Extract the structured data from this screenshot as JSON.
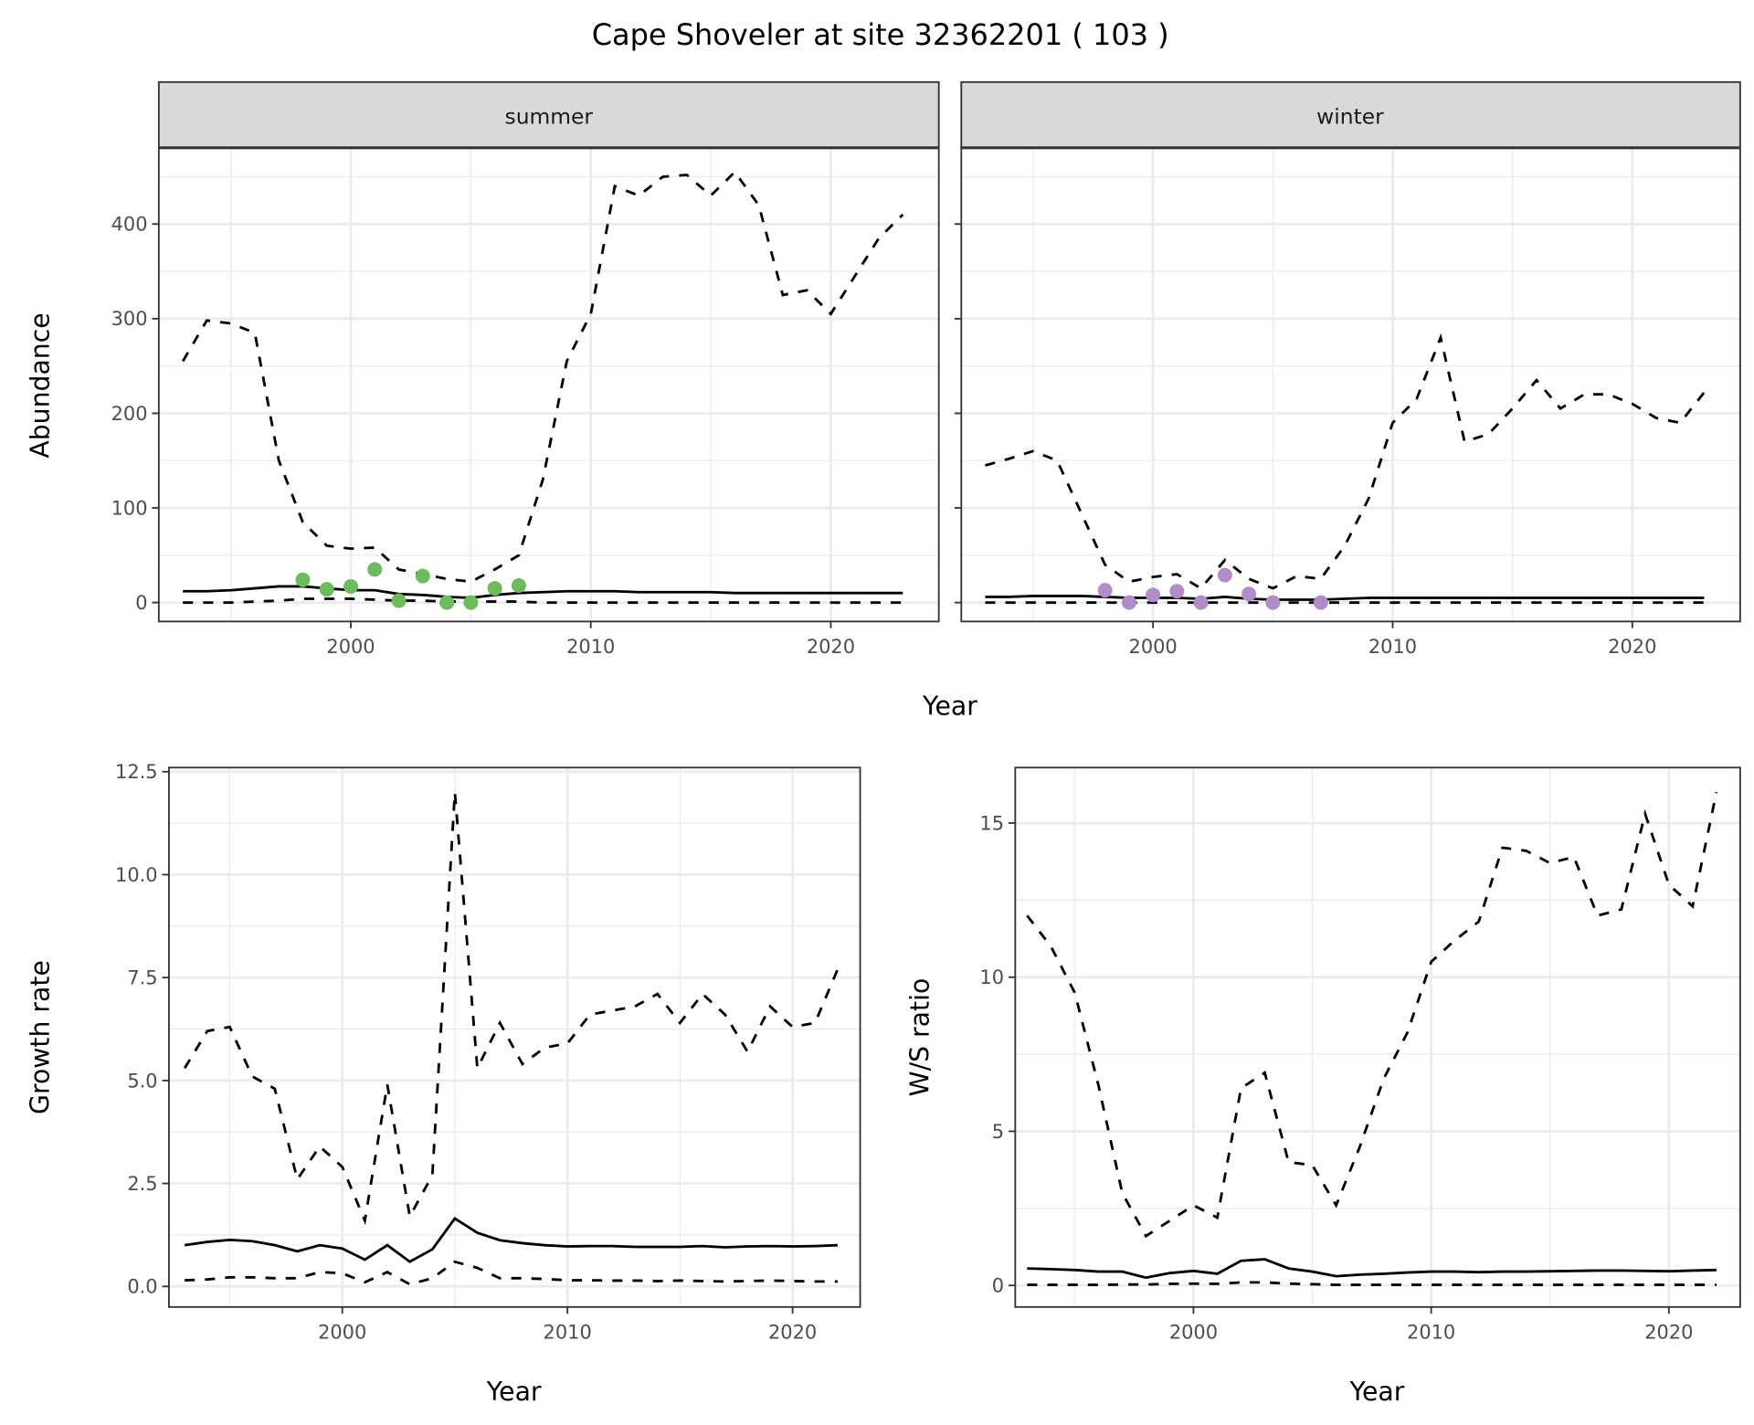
{
  "title": "Cape Shoveler at site 32362201 ( 103 )",
  "chart_data": [
    {
      "type": "line",
      "facet": "summer",
      "xlabel": "Year",
      "ylabel": "Abundance",
      "xlim": [
        1992,
        2024.5
      ],
      "ylim": [
        -20,
        480
      ],
      "xticks": [
        2000,
        2010,
        2020
      ],
      "yticks": [
        0,
        100,
        200,
        300,
        400
      ],
      "x": [
        1993,
        1994,
        1995,
        1996,
        1997,
        1998,
        1999,
        2000,
        2001,
        2002,
        2003,
        2004,
        2005,
        2006,
        2007,
        2008,
        2009,
        2010,
        2011,
        2012,
        2013,
        2014,
        2015,
        2016,
        2017,
        2018,
        2019,
        2020,
        2021,
        2022,
        2023
      ],
      "series": [
        {
          "name": "upper",
          "style": "dashed",
          "values": [
            255,
            298,
            295,
            285,
            150,
            85,
            60,
            57,
            58,
            35,
            30,
            25,
            22,
            35,
            50,
            130,
            255,
            305,
            440,
            430,
            450,
            452,
            430,
            455,
            420,
            325,
            330,
            305,
            345,
            385,
            410
          ]
        },
        {
          "name": "mean",
          "style": "solid",
          "values": [
            12,
            12,
            13,
            15,
            17,
            17,
            15,
            13,
            13,
            9,
            8,
            6,
            5,
            8,
            10,
            11,
            12,
            12,
            12,
            11,
            11,
            11,
            11,
            10,
            10,
            10,
            10,
            10,
            10,
            10,
            10
          ]
        },
        {
          "name": "lower",
          "style": "dashed",
          "values": [
            0,
            0,
            0,
            1,
            2,
            4,
            4,
            4,
            3,
            2,
            2,
            1,
            1,
            1,
            1,
            0,
            0,
            0,
            0,
            0,
            0,
            0,
            0,
            0,
            0,
            0,
            0,
            0,
            0,
            0,
            0
          ]
        }
      ],
      "points": {
        "color": "#6dbb5c",
        "x": [
          1998,
          1999,
          2000,
          2001,
          2002,
          2003,
          2004,
          2005,
          2006,
          2007
        ],
        "y": [
          24,
          14,
          17,
          35,
          2,
          28,
          0,
          0,
          15,
          18
        ]
      }
    },
    {
      "type": "line",
      "facet": "winter",
      "xlabel": "Year",
      "ylabel": "Abundance",
      "xlim": [
        1992,
        2024.5
      ],
      "ylim": [
        -20,
        480
      ],
      "xticks": [
        2000,
        2010,
        2020
      ],
      "yticks": [
        0,
        100,
        200,
        300,
        400
      ],
      "x": [
        1993,
        1994,
        1995,
        1996,
        1997,
        1998,
        1999,
        2000,
        2001,
        2002,
        2003,
        2004,
        2005,
        2006,
        2007,
        2008,
        2009,
        2010,
        2011,
        2012,
        2013,
        2014,
        2015,
        2016,
        2017,
        2018,
        2019,
        2020,
        2021,
        2022,
        2023
      ],
      "series": [
        {
          "name": "upper",
          "style": "dashed",
          "values": [
            145,
            152,
            160,
            150,
            95,
            40,
            22,
            27,
            30,
            15,
            45,
            25,
            15,
            28,
            25,
            60,
            110,
            190,
            215,
            280,
            170,
            178,
            205,
            235,
            205,
            220,
            220,
            210,
            195,
            190,
            222
          ]
        },
        {
          "name": "mean",
          "style": "solid",
          "values": [
            6,
            6,
            7,
            7,
            7,
            6,
            5,
            5,
            5,
            4,
            6,
            4,
            3,
            3,
            3,
            4,
            5,
            5,
            5,
            5,
            5,
            5,
            5,
            5,
            5,
            5,
            5,
            5,
            5,
            5,
            5
          ]
        },
        {
          "name": "lower",
          "style": "dashed",
          "values": [
            0,
            0,
            0,
            0,
            0,
            0,
            0,
            0,
            0,
            0,
            0,
            0,
            0,
            0,
            0,
            0,
            0,
            0,
            0,
            0,
            0,
            0,
            0,
            0,
            0,
            0,
            0,
            0,
            0,
            0,
            0
          ]
        }
      ],
      "points": {
        "color": "#b08cc8",
        "x": [
          1998,
          1999,
          2000,
          2001,
          2002,
          2003,
          2004,
          2005,
          2007
        ],
        "y": [
          13,
          0,
          8,
          12,
          0,
          29,
          9,
          0,
          0
        ]
      }
    },
    {
      "type": "line",
      "xlabel": "Year",
      "ylabel": "Growth rate",
      "xlim": [
        1992.3,
        2023.0
      ],
      "ylim": [
        -0.5,
        12.6
      ],
      "xticks": [
        2000,
        2010,
        2020
      ],
      "yticks": [
        0.0,
        2.5,
        5.0,
        7.5,
        10.0,
        12.5
      ],
      "ytick_labels": [
        "0.0",
        "2.5",
        "5.0",
        "7.5",
        "10.0",
        "12.5"
      ],
      "x": [
        1993,
        1994,
        1995,
        1996,
        1997,
        1998,
        1999,
        2000,
        2001,
        2002,
        2003,
        2004,
        2005,
        2006,
        2007,
        2008,
        2009,
        2010,
        2011,
        2012,
        2013,
        2014,
        2015,
        2016,
        2017,
        2018,
        2019,
        2020,
        2021,
        2022
      ],
      "series": [
        {
          "name": "upper",
          "style": "dashed",
          "values": [
            5.3,
            6.2,
            6.3,
            5.1,
            4.8,
            2.6,
            3.4,
            2.9,
            1.6,
            4.9,
            1.7,
            2.7,
            12.0,
            5.3,
            6.4,
            5.4,
            5.8,
            5.9,
            6.6,
            6.7,
            6.8,
            7.1,
            6.4,
            7.1,
            6.6,
            5.7,
            6.8,
            6.3,
            6.4,
            7.7
          ]
        },
        {
          "name": "mean",
          "style": "solid",
          "values": [
            1.0,
            1.08,
            1.13,
            1.1,
            1.0,
            0.85,
            1.0,
            0.92,
            0.65,
            1.0,
            0.6,
            0.9,
            1.65,
            1.3,
            1.12,
            1.05,
            1.0,
            0.97,
            0.98,
            0.98,
            0.96,
            0.96,
            0.96,
            0.98,
            0.95,
            0.97,
            0.98,
            0.97,
            0.98,
            1.0
          ]
        },
        {
          "name": "lower",
          "style": "dashed",
          "values": [
            0.15,
            0.17,
            0.22,
            0.22,
            0.2,
            0.2,
            0.35,
            0.32,
            0.1,
            0.35,
            0.05,
            0.2,
            0.6,
            0.45,
            0.2,
            0.2,
            0.18,
            0.15,
            0.15,
            0.14,
            0.14,
            0.13,
            0.14,
            0.13,
            0.12,
            0.13,
            0.14,
            0.13,
            0.12,
            0.12
          ]
        }
      ]
    },
    {
      "type": "line",
      "xlabel": "Year",
      "ylabel": "W/S ratio",
      "xlim": [
        1992.5,
        2023.0
      ],
      "ylim": [
        -0.7,
        16.8
      ],
      "xticks": [
        2000,
        2010,
        2020
      ],
      "yticks": [
        0,
        5,
        10,
        15
      ],
      "x": [
        1993,
        1994,
        1995,
        1996,
        1997,
        1998,
        1999,
        2000,
        2001,
        2002,
        2003,
        2004,
        2005,
        2006,
        2007,
        2008,
        2009,
        2010,
        2011,
        2012,
        2013,
        2014,
        2015,
        2016,
        2017,
        2018,
        2019,
        2020,
        2021,
        2022
      ],
      "series": [
        {
          "name": "upper",
          "style": "dashed",
          "values": [
            12,
            11,
            9.5,
            6.5,
            3,
            1.6,
            2.1,
            2.6,
            2.2,
            6.4,
            6.9,
            4,
            3.9,
            2.6,
            4.5,
            6.7,
            8.2,
            10.5,
            11.2,
            11.8,
            14.2,
            14.1,
            13.7,
            13.9,
            12,
            12.2,
            15.3,
            13,
            12.3,
            16
          ]
        },
        {
          "name": "mean",
          "style": "solid",
          "values": [
            0.55,
            0.53,
            0.5,
            0.45,
            0.45,
            0.25,
            0.4,
            0.47,
            0.38,
            0.8,
            0.85,
            0.55,
            0.45,
            0.3,
            0.35,
            0.38,
            0.42,
            0.45,
            0.45,
            0.43,
            0.45,
            0.45,
            0.46,
            0.47,
            0.48,
            0.48,
            0.47,
            0.46,
            0.48,
            0.5
          ]
        },
        {
          "name": "lower",
          "style": "dashed",
          "values": [
            0.02,
            0.02,
            0.02,
            0.02,
            0.03,
            0.03,
            0.05,
            0.06,
            0.05,
            0.1,
            0.1,
            0.06,
            0.04,
            0.02,
            0.02,
            0.02,
            0.02,
            0.02,
            0.02,
            0.02,
            0.02,
            0.02,
            0.02,
            0.02,
            0.02,
            0.02,
            0.02,
            0.02,
            0.02,
            0.02
          ]
        }
      ]
    }
  ]
}
